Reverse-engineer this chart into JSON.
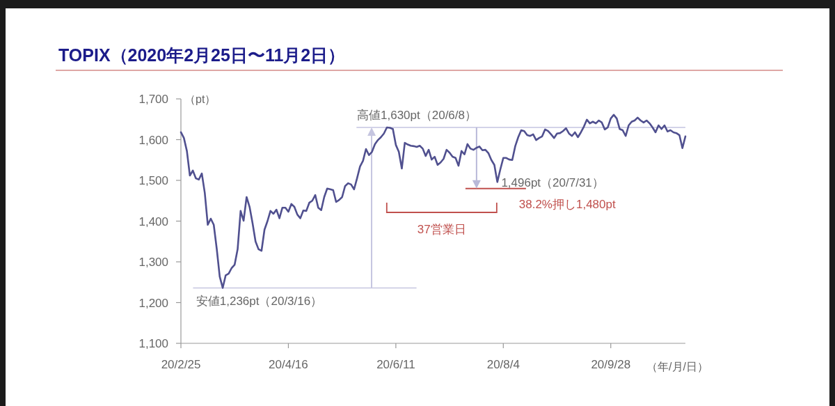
{
  "chart_data": {
    "type": "line",
    "title": "TOPIX（2020年2月25日〜11月2日）",
    "xlabel": "（年/月/日）",
    "ylabel": "（pt）",
    "categories": [
      "20/2/25",
      null,
      null,
      null,
      null,
      null,
      null,
      null,
      null,
      null,
      null,
      null,
      null,
      null,
      null,
      null,
      null,
      null,
      null,
      null,
      null,
      null,
      null,
      null,
      null,
      null,
      null,
      null,
      null,
      null,
      null,
      null,
      null,
      null,
      null,
      null,
      "20/4/16",
      null,
      null,
      null,
      null,
      null,
      null,
      null,
      null,
      null,
      null,
      null,
      null,
      null,
      null,
      null,
      null,
      null,
      null,
      null,
      null,
      null,
      null,
      null,
      null,
      null,
      null,
      null,
      null,
      null,
      null,
      null,
      null,
      null,
      null,
      null,
      "20/6/11",
      null,
      null,
      null,
      null,
      null,
      null,
      null,
      null,
      null,
      null,
      null,
      null,
      null,
      null,
      null,
      null,
      null,
      null,
      null,
      null,
      null,
      null,
      null,
      null,
      null,
      null,
      null,
      null,
      null,
      null,
      null,
      null,
      null,
      null,
      null,
      "20/8/4",
      null,
      null,
      null,
      null,
      null,
      null,
      null,
      null,
      null,
      null,
      null,
      null,
      null,
      null,
      null,
      null,
      null,
      null,
      null,
      null,
      null,
      null,
      null,
      null,
      null,
      null,
      null,
      null,
      null,
      null,
      null,
      null,
      null,
      null,
      null,
      "20/9/28",
      null,
      null,
      null,
      null,
      null,
      null,
      null,
      null,
      null,
      null,
      null,
      null,
      null,
      null,
      null,
      null,
      null,
      null,
      null,
      null,
      null,
      null,
      null,
      null,
      null
    ],
    "ylim": [
      1100,
      1700
    ],
    "yticks": [
      {
        "value": 1100,
        "label": "1,100"
      },
      {
        "value": 1200,
        "label": "1,200"
      },
      {
        "value": 1300,
        "label": "1,300"
      },
      {
        "value": 1400,
        "label": "1,400"
      },
      {
        "value": 1500,
        "label": "1,500"
      },
      {
        "value": 1600,
        "label": "1,600"
      },
      {
        "value": 1700,
        "label": "1,700"
      }
    ],
    "line_style": "solid",
    "series": [
      {
        "color": "#50508f",
        "values": [
          1618,
          1604,
          1572,
          1512,
          1524,
          1505,
          1502,
          1517,
          1469,
          1391,
          1406,
          1391,
          1332,
          1264,
          1236,
          1267,
          1271,
          1285,
          1293,
          1331,
          1425,
          1401,
          1459,
          1435,
          1395,
          1350,
          1331,
          1327,
          1379,
          1400,
          1425,
          1418,
          1428,
          1407,
          1433,
          1433,
          1423,
          1442,
          1435,
          1416,
          1407,
          1426,
          1425,
          1445,
          1450,
          1464,
          1433,
          1427,
          1459,
          1480,
          1478,
          1476,
          1447,
          1452,
          1459,
          1486,
          1493,
          1490,
          1478,
          1505,
          1534,
          1548,
          1577,
          1562,
          1570,
          1589,
          1599,
          1606,
          1615,
          1630,
          1629,
          1626,
          1587,
          1570,
          1529,
          1592,
          1588,
          1585,
          1584,
          1582,
          1585,
          1578,
          1560,
          1575,
          1551,
          1558,
          1538,
          1544,
          1553,
          1575,
          1568,
          1558,
          1555,
          1536,
          1572,
          1564,
          1589,
          1578,
          1575,
          1580,
          1583,
          1574,
          1575,
          1567,
          1550,
          1538,
          1496,
          1527,
          1555,
          1555,
          1551,
          1550,
          1584,
          1606,
          1623,
          1621,
          1611,
          1609,
          1613,
          1599,
          1604,
          1608,
          1625,
          1621,
          1613,
          1604,
          1615,
          1616,
          1621,
          1628,
          1615,
          1609,
          1618,
          1606,
          1618,
          1632,
          1649,
          1640,
          1644,
          1640,
          1647,
          1642,
          1625,
          1630,
          1652,
          1661,
          1652,
          1626,
          1623,
          1609,
          1635,
          1644,
          1647,
          1654,
          1647,
          1642,
          1647,
          1640,
          1630,
          1618,
          1635,
          1626,
          1635,
          1620,
          1623,
          1618,
          1616,
          1611,
          1579,
          1608
        ]
      }
    ],
    "ref_lines": [
      {
        "axis": "y",
        "value": 1630,
        "label": "高値1,630pt（20/6/8）",
        "color": "#c5c5e0"
      },
      {
        "axis": "y",
        "value": 1236,
        "label": "安値1,236pt（20/3/16）",
        "color": "#c5c5e0"
      },
      {
        "axis": "y",
        "value": 1480,
        "label": "38.2%押し1,480pt",
        "color": "#c0504d"
      }
    ],
    "annotations": [
      "1,496pt（20/7/31）",
      "37営業日"
    ]
  }
}
